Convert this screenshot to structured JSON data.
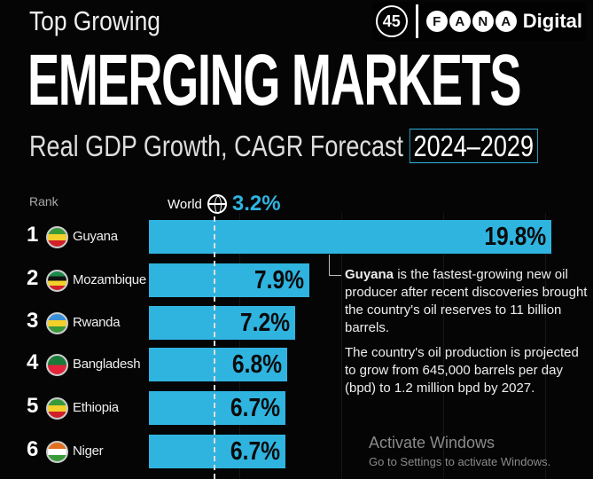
{
  "header": {
    "kicker": "Top Growing",
    "title": "EMERGING MARKETS",
    "subtitle": "Real GDP Growth, CAGR Forecast",
    "period": "2024–2029"
  },
  "rank_label": "Rank",
  "world": {
    "label": "World",
    "value": "3.2%",
    "icon": "globe-icon"
  },
  "chart_data": {
    "type": "bar",
    "orientation": "horizontal",
    "title": "EMERGING MARKETS",
    "subtitle": "Real GDP Growth, CAGR Forecast 2024–2029",
    "reference_line": {
      "label": "World",
      "value": 3.2
    },
    "categories": [
      "Guyana",
      "Mozambique",
      "Rwanda",
      "Bangladesh",
      "Ethiopia",
      "Niger"
    ],
    "ranks": [
      "1",
      "2",
      "3",
      "4",
      "5",
      "6"
    ],
    "values": [
      19.8,
      7.9,
      7.2,
      6.8,
      6.7,
      6.7
    ],
    "value_labels": [
      "19.8%",
      "7.9%",
      "7.2%",
      "6.8%",
      "6.7%",
      "6.7%"
    ],
    "bar_color": "#2fb4e0",
    "xlim": [
      0,
      19.8
    ]
  },
  "flags": [
    {
      "icon": "guyana-flag-icon",
      "colors": [
        "#3a9a3a",
        "#f3d02b",
        "#d0202a"
      ]
    },
    {
      "icon": "mozambique-flag-icon",
      "colors": [
        "#1a8a4a",
        "#111",
        "#f3d02b",
        "#d0202a"
      ]
    },
    {
      "icon": "rwanda-flag-icon",
      "colors": [
        "#3a8fd8",
        "#f3d02b",
        "#3a9a3a"
      ]
    },
    {
      "icon": "bangladesh-flag-icon",
      "colors": [
        "#1a7a3a",
        "#e3243b"
      ]
    },
    {
      "icon": "ethiopia-flag-icon",
      "colors": [
        "#3a9a3a",
        "#f3d02b",
        "#d0202a"
      ]
    },
    {
      "icon": "niger-flag-icon",
      "colors": [
        "#e07020",
        "#fff",
        "#3a9a3a"
      ]
    }
  ],
  "note": {
    "bold": "Guyana",
    "p1": " is the fastest-growing new oil producer after recent discoveries brought the country's oil reserves to 11 billion barrels.",
    "p2": "The country's oil production is projected to grow from 645,000 barrels per day (bpd) to 1.2 million bpd by 2027."
  },
  "watermark": {
    "logo": "45",
    "letters": [
      "F",
      "A",
      "N",
      "A"
    ],
    "word": "Digital"
  },
  "activation": {
    "title": "Activate Windows",
    "sub": "Go to Settings to activate Windows."
  }
}
